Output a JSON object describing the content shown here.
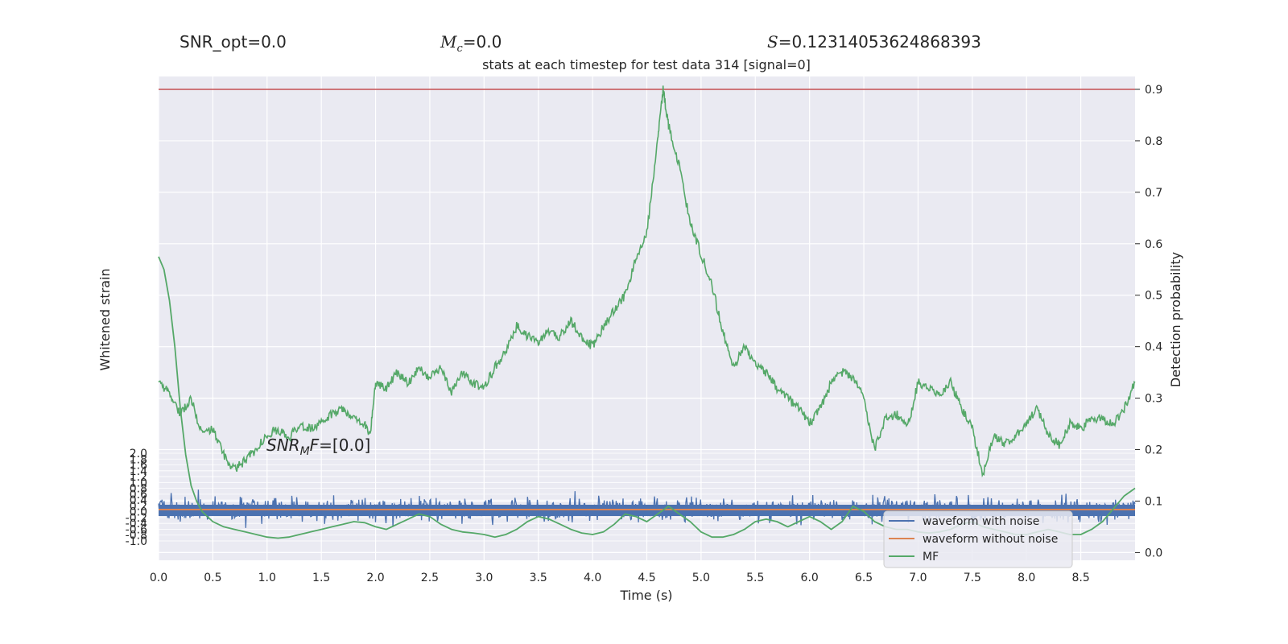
{
  "header": {
    "snr_opt": "SNR_opt=0.0",
    "mc_symbol": "M",
    "mc_sub": "c",
    "mc_value": "=0.0",
    "s_symbol": "S",
    "s_value": "=0.12314053624868393"
  },
  "chart_data": {
    "type": "line",
    "title": "stats at each timestep for test data 314 [signal=0]",
    "xlabel": "Time (s)",
    "ylabel_left": "Whitened strain",
    "ylabel_right": "Detection probability",
    "xlim": [
      0.0,
      9.0
    ],
    "ylim_right": [
      -0.015,
      0.925
    ],
    "ylim_left": [
      -1.2,
      2.0
    ],
    "x_ticks": [
      "0.0",
      "0.5",
      "1.0",
      "1.5",
      "2.0",
      "2.5",
      "3.0",
      "3.5",
      "4.0",
      "4.5",
      "5.0",
      "5.5",
      "6.0",
      "6.5",
      "7.0",
      "7.5",
      "8.0",
      "8.5"
    ],
    "right_ticks": [
      "0.0",
      "0.1",
      "0.2",
      "0.3",
      "0.4",
      "0.5",
      "0.6",
      "0.7",
      "0.8",
      "0.9"
    ],
    "left_ticks": [
      "2.0",
      "1.8",
      "1.6",
      "1.4",
      "1.2",
      "1.0",
      "0.8",
      "0.6",
      "0.4",
      "0.2",
      "0.0",
      "-0.2",
      "-0.4",
      "-0.6",
      "-0.8",
      "-1.0"
    ],
    "threshold": {
      "value": 0.9,
      "color": "#c44e52"
    },
    "annotation": {
      "base": "SNR",
      "sub": "M",
      "tail": "F=[0.0]"
    },
    "legend": {
      "placement": "lower right",
      "entries": [
        "waveform with noise",
        "waveform without noise",
        "MF"
      ]
    },
    "colors": {
      "noise": "#4c72b0",
      "clean": "#dd8452",
      "mf": "#55a868",
      "background": "#eaeaf2",
      "grid": "#ffffff"
    },
    "series": [
      {
        "name": "Detection probability",
        "axis": "right",
        "x": [
          0.0,
          0.1,
          0.2,
          0.3,
          0.4,
          0.5,
          0.6,
          0.7,
          0.8,
          0.9,
          1.0,
          1.1,
          1.2,
          1.3,
          1.4,
          1.5,
          1.6,
          1.7,
          1.8,
          1.9,
          1.95,
          2.0,
          2.1,
          2.2,
          2.3,
          2.4,
          2.5,
          2.6,
          2.7,
          2.8,
          2.9,
          3.0,
          3.1,
          3.2,
          3.3,
          3.4,
          3.5,
          3.6,
          3.7,
          3.8,
          3.9,
          4.0,
          4.1,
          4.2,
          4.3,
          4.4,
          4.5,
          4.6,
          4.65,
          4.7,
          4.8,
          4.9,
          5.0,
          5.1,
          5.2,
          5.3,
          5.4,
          5.5,
          5.6,
          5.7,
          5.8,
          5.9,
          6.0,
          6.1,
          6.2,
          6.3,
          6.4,
          6.5,
          6.6,
          6.7,
          6.8,
          6.9,
          7.0,
          7.1,
          7.2,
          7.3,
          7.4,
          7.5,
          7.6,
          7.7,
          7.8,
          7.9,
          8.0,
          8.1,
          8.2,
          8.3,
          8.4,
          8.5,
          8.6,
          8.7,
          8.8,
          8.9,
          9.0
        ],
        "values": [
          0.33,
          0.31,
          0.27,
          0.3,
          0.23,
          0.24,
          0.19,
          0.16,
          0.18,
          0.2,
          0.23,
          0.24,
          0.22,
          0.25,
          0.24,
          0.25,
          0.27,
          0.28,
          0.26,
          0.25,
          0.23,
          0.33,
          0.32,
          0.35,
          0.33,
          0.36,
          0.34,
          0.36,
          0.31,
          0.35,
          0.33,
          0.32,
          0.36,
          0.39,
          0.44,
          0.42,
          0.41,
          0.43,
          0.42,
          0.45,
          0.42,
          0.4,
          0.44,
          0.47,
          0.5,
          0.57,
          0.62,
          0.8,
          0.9,
          0.83,
          0.75,
          0.64,
          0.58,
          0.52,
          0.43,
          0.36,
          0.4,
          0.37,
          0.35,
          0.32,
          0.3,
          0.28,
          0.25,
          0.28,
          0.33,
          0.35,
          0.34,
          0.3,
          0.2,
          0.26,
          0.27,
          0.24,
          0.33,
          0.32,
          0.31,
          0.33,
          0.28,
          0.24,
          0.15,
          0.23,
          0.21,
          0.23,
          0.25,
          0.28,
          0.23,
          0.21,
          0.25,
          0.24,
          0.26,
          0.26,
          0.25,
          0.28,
          0.33
        ]
      },
      {
        "name": "MF",
        "axis": "right",
        "x": [
          0.0,
          0.05,
          0.1,
          0.15,
          0.2,
          0.25,
          0.3,
          0.35,
          0.4,
          0.45,
          0.5,
          0.55,
          0.6,
          0.7,
          0.8,
          0.9,
          1.0,
          1.1,
          1.2,
          1.3,
          1.4,
          1.5,
          1.6,
          1.7,
          1.8,
          1.9,
          2.0,
          2.1,
          2.2,
          2.3,
          2.4,
          2.5,
          2.6,
          2.7,
          2.8,
          2.9,
          3.0,
          3.1,
          3.2,
          3.3,
          3.4,
          3.5,
          3.6,
          3.7,
          3.8,
          3.9,
          4.0,
          4.1,
          4.2,
          4.3,
          4.4,
          4.5,
          4.6,
          4.7,
          4.8,
          4.9,
          5.0,
          5.1,
          5.2,
          5.3,
          5.4,
          5.5,
          5.6,
          5.7,
          5.8,
          5.9,
          6.0,
          6.1,
          6.2,
          6.3,
          6.4,
          6.5,
          6.6,
          6.7,
          6.8,
          6.9,
          7.0,
          7.1,
          7.2,
          7.3,
          7.4,
          7.5,
          7.6,
          7.7,
          7.8,
          7.9,
          8.0,
          8.1,
          8.2,
          8.3,
          8.4,
          8.5,
          8.6,
          8.7,
          8.8,
          8.9,
          9.0
        ],
        "values": [
          0.575,
          0.55,
          0.49,
          0.4,
          0.28,
          0.19,
          0.13,
          0.1,
          0.08,
          0.07,
          0.06,
          0.055,
          0.05,
          0.045,
          0.04,
          0.035,
          0.03,
          0.028,
          0.03,
          0.035,
          0.04,
          0.045,
          0.05,
          0.055,
          0.06,
          0.058,
          0.05,
          0.045,
          0.055,
          0.065,
          0.075,
          0.07,
          0.055,
          0.045,
          0.04,
          0.038,
          0.035,
          0.03,
          0.035,
          0.045,
          0.06,
          0.07,
          0.065,
          0.055,
          0.045,
          0.038,
          0.035,
          0.04,
          0.055,
          0.075,
          0.07,
          0.06,
          0.075,
          0.09,
          0.075,
          0.06,
          0.04,
          0.03,
          0.03,
          0.035,
          0.045,
          0.06,
          0.065,
          0.06,
          0.05,
          0.06,
          0.07,
          0.06,
          0.045,
          0.06,
          0.09,
          0.08,
          0.06,
          0.05,
          0.045,
          0.045,
          0.04,
          0.038,
          0.04,
          0.045,
          0.055,
          0.06,
          0.05,
          0.045,
          0.04,
          0.035,
          0.035,
          0.04,
          0.045,
          0.04,
          0.035,
          0.035,
          0.045,
          0.06,
          0.085,
          0.11,
          0.125
        ]
      }
    ],
    "strain_series": [
      {
        "name": "waveform with noise",
        "axis": "left",
        "mean": 0.0,
        "sigma": 0.08,
        "peak": 0.36,
        "min": -0.45
      },
      {
        "name": "waveform without noise",
        "axis": "left",
        "values_constant": 0.0
      }
    ]
  }
}
